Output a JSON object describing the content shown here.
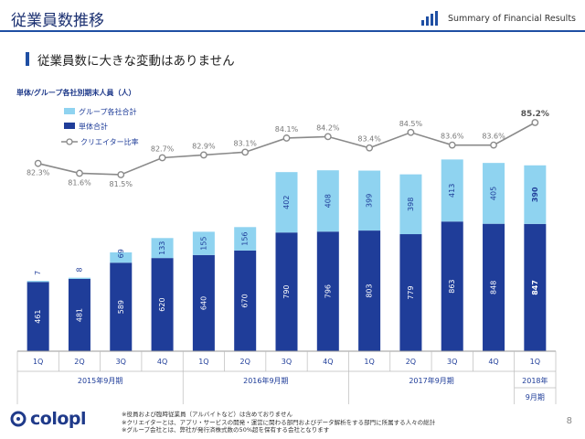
{
  "header": {
    "title": "従業員数推移",
    "brand": "Summary of Financial Results"
  },
  "subtitle": "従業員数に大きな変動はありません",
  "chart_data": {
    "type": "bar",
    "stacked": true,
    "unit_label": "単体/グループ各社別期末人員（人）",
    "categories": [
      "1Q",
      "2Q",
      "3Q",
      "4Q",
      "1Q",
      "2Q",
      "3Q",
      "4Q",
      "1Q",
      "2Q",
      "3Q",
      "4Q",
      "1Q"
    ],
    "period_groups": [
      {
        "label": "2015年9月期",
        "count": 4
      },
      {
        "label": "2016年9月期",
        "count": 4
      },
      {
        "label": "2017年9月期",
        "count": 4
      },
      {
        "label": "2018年",
        "label2": "9月期",
        "count": 1
      }
    ],
    "series": [
      {
        "name": "単体合計",
        "color": "#1f3d99",
        "values": [
          461,
          481,
          589,
          620,
          640,
          670,
          790,
          796,
          803,
          779,
          863,
          848,
          847
        ]
      },
      {
        "name": "グループ各社合計",
        "color": "#8fd3f0",
        "values": [
          7,
          8,
          69,
          133,
          155,
          156,
          402,
          408,
          399,
          398,
          413,
          405,
          390
        ]
      }
    ],
    "line_series": {
      "name": "クリエイター比率",
      "color": "#8a8a8a",
      "values": [
        82.3,
        81.6,
        81.5,
        82.7,
        82.9,
        83.1,
        84.1,
        84.2,
        83.4,
        84.5,
        83.6,
        83.6,
        85.2
      ],
      "labels": [
        "82.3%",
        "81.6%",
        "81.5%",
        "82.7%",
        "82.9%",
        "83.1%",
        "84.1%",
        "84.2%",
        "83.4%",
        "84.5%",
        "83.6%",
        "83.6%",
        "85.2%"
      ]
    },
    "ylim": [
      0,
      1400
    ]
  },
  "footnotes": [
    "※役員および臨時従業員（アルバイトなど）は含めておりません",
    "※クリエイターとは、アプリ・サービスの開発・運営に関わる部門およびデータ解析をする部門に所属する人々の総計",
    "※グループ会社とは、弊社が発行済株式数の50%超を保有する会社となります"
  ],
  "logo": "colopl",
  "page_number": "8",
  "colors": {
    "primary": "#1f3d99",
    "secondary": "#8fd3f0",
    "line": "#8a8a8a",
    "accent": "#1f4fa3"
  }
}
